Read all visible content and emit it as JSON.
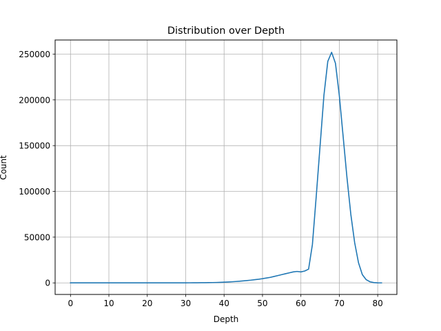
{
  "chart_data": {
    "type": "line",
    "title": "Distribution over Depth",
    "xlabel": "Depth",
    "ylabel": "Count",
    "xlim": [
      -4,
      85
    ],
    "ylim": [
      -12640,
      265440
    ],
    "xticks": [
      0,
      10,
      20,
      30,
      40,
      50,
      60,
      70,
      80
    ],
    "xtick_labels": [
      "0",
      "10",
      "20",
      "30",
      "40",
      "50",
      "60",
      "70",
      "80"
    ],
    "yticks": [
      0,
      50000,
      100000,
      150000,
      200000,
      250000
    ],
    "ytick_labels": [
      "0",
      "50000",
      "100000",
      "150000",
      "200000",
      "250000"
    ],
    "grid": true,
    "legend": "none",
    "series_color": "#1f77b4",
    "x": [
      0,
      1,
      2,
      3,
      4,
      5,
      6,
      7,
      8,
      9,
      10,
      11,
      12,
      13,
      14,
      15,
      16,
      17,
      18,
      19,
      20,
      21,
      22,
      23,
      24,
      25,
      26,
      27,
      28,
      29,
      30,
      31,
      32,
      33,
      34,
      35,
      36,
      37,
      38,
      39,
      40,
      41,
      42,
      43,
      44,
      45,
      46,
      47,
      48,
      49,
      50,
      51,
      52,
      53,
      54,
      55,
      56,
      57,
      58,
      59,
      60,
      61,
      62,
      63,
      64,
      65,
      66,
      67,
      68,
      69,
      70,
      71,
      72,
      73,
      74,
      75,
      76,
      77,
      78,
      79,
      80,
      81
    ],
    "values": [
      0,
      0,
      0,
      0,
      0,
      0,
      0,
      0,
      0,
      0,
      0,
      0,
      0,
      0,
      0,
      0,
      0,
      0,
      0,
      0,
      0,
      0,
      0,
      0,
      0,
      0,
      0,
      0,
      0,
      0,
      50,
      80,
      100,
      150,
      200,
      250,
      300,
      350,
      450,
      600,
      800,
      1000,
      1200,
      1500,
      1800,
      2200,
      2600,
      3000,
      3500,
      4000,
      4600,
      5300,
      6000,
      7000,
      8000,
      9000,
      10000,
      11000,
      12000,
      12500,
      12000,
      13000,
      15000,
      42000,
      95000,
      150000,
      205000,
      242000,
      252000,
      240000,
      205000,
      160000,
      115000,
      75000,
      44000,
      22000,
      9000,
      3500,
      1200,
      300,
      50,
      0
    ]
  }
}
